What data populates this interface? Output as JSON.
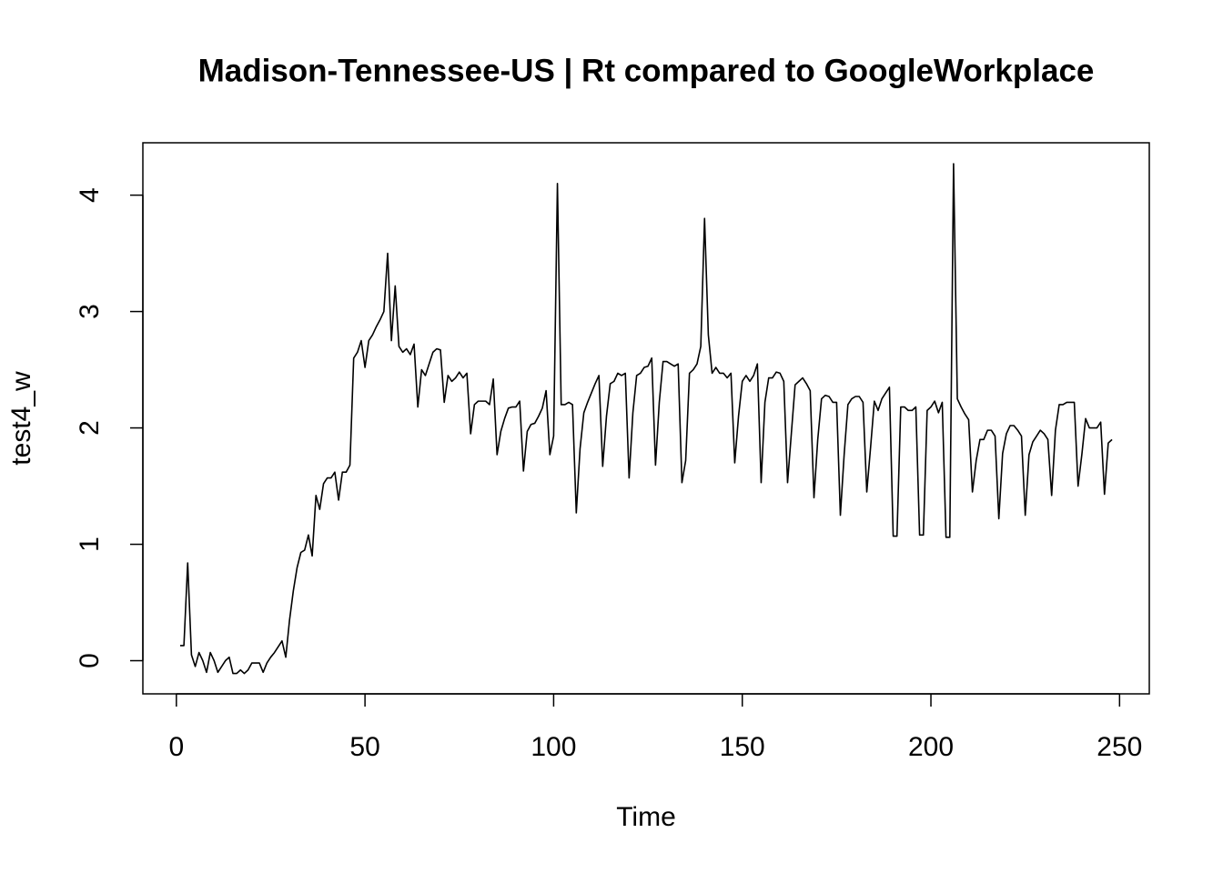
{
  "chart_data": {
    "type": "line",
    "title": "Madison-Tennessee-US | Rt compared to GoogleWorkplace",
    "x_label": "Time",
    "y_label": "test4_w",
    "xlim": [
      -8.88,
      257.88
    ],
    "ylim": [
      -0.285,
      4.45
    ],
    "xticks": [
      0,
      50,
      100,
      150,
      200,
      250
    ],
    "yticks": [
      0,
      1,
      2,
      3,
      4
    ],
    "series": [
      {
        "color": "#000000",
        "x": [
          1,
          2,
          3,
          4,
          5,
          6,
          7,
          8,
          9,
          10,
          11,
          12,
          13,
          14,
          15,
          16,
          17,
          18,
          19,
          20,
          21,
          22,
          23,
          24,
          25,
          26,
          27,
          28,
          29,
          30,
          31,
          32,
          33,
          34,
          35,
          36,
          37,
          38,
          39,
          40,
          41,
          42,
          43,
          44,
          45,
          46,
          47,
          48,
          49,
          50,
          51,
          52,
          53,
          54,
          55,
          56,
          57,
          58,
          59,
          60,
          61,
          62,
          63,
          64,
          65,
          66,
          67,
          68,
          69,
          70,
          71,
          72,
          73,
          74,
          75,
          76,
          77,
          78,
          79,
          80,
          81,
          82,
          83,
          84,
          85,
          86,
          87,
          88,
          89,
          90,
          91,
          92,
          93,
          94,
          95,
          96,
          97,
          98,
          99,
          100,
          101,
          102,
          103,
          104,
          105,
          106,
          107,
          108,
          109,
          110,
          111,
          112,
          113,
          114,
          115,
          116,
          117,
          118,
          119,
          120,
          121,
          122,
          123,
          124,
          125,
          126,
          127,
          128,
          129,
          130,
          131,
          132,
          133,
          134,
          135,
          136,
          137,
          138,
          139,
          140,
          141,
          142,
          143,
          144,
          145,
          146,
          147,
          148,
          149,
          150,
          151,
          152,
          153,
          154,
          155,
          156,
          157,
          158,
          159,
          160,
          161,
          162,
          163,
          164,
          165,
          166,
          167,
          168,
          169,
          170,
          171,
          172,
          173,
          174,
          175,
          176,
          177,
          178,
          179,
          180,
          181,
          182,
          183,
          184,
          185,
          186,
          187,
          188,
          189,
          190,
          191,
          192,
          193,
          194,
          195,
          196,
          197,
          198,
          199,
          200,
          201,
          202,
          203,
          204,
          205,
          206,
          207,
          208,
          209,
          210,
          211,
          212,
          213,
          214,
          215,
          216,
          217,
          218,
          219,
          220,
          221,
          222,
          223,
          224,
          225,
          226,
          227,
          228,
          229,
          230,
          231,
          232,
          233,
          234,
          235,
          236,
          237,
          238,
          239,
          240,
          241,
          242,
          243,
          244,
          245,
          246,
          247,
          248
        ],
        "values": [
          0.13,
          0.13,
          0.84,
          0.05,
          -0.05,
          0.07,
          0.0,
          -0.1,
          0.07,
          0.0,
          -0.1,
          -0.05,
          0.0,
          0.03,
          -0.11,
          -0.11,
          -0.08,
          -0.11,
          -0.08,
          -0.02,
          -0.02,
          -0.02,
          -0.1,
          -0.02,
          0.03,
          0.07,
          0.12,
          0.17,
          0.03,
          0.35,
          0.6,
          0.8,
          0.93,
          0.95,
          1.08,
          0.9,
          1.42,
          1.3,
          1.52,
          1.57,
          1.57,
          1.62,
          1.38,
          1.62,
          1.62,
          1.68,
          2.6,
          2.65,
          2.75,
          2.52,
          2.75,
          2.8,
          2.87,
          2.93,
          3.0,
          3.5,
          2.75,
          3.22,
          2.7,
          2.65,
          2.68,
          2.63,
          2.72,
          2.18,
          2.5,
          2.45,
          2.55,
          2.65,
          2.68,
          2.67,
          2.22,
          2.45,
          2.4,
          2.43,
          2.48,
          2.43,
          2.47,
          1.95,
          2.2,
          2.23,
          2.23,
          2.23,
          2.2,
          2.42,
          1.77,
          1.97,
          2.08,
          2.17,
          2.18,
          2.18,
          2.23,
          1.63,
          1.97,
          2.03,
          2.04,
          2.1,
          2.17,
          2.32,
          1.77,
          1.93,
          4.1,
          2.2,
          2.2,
          2.22,
          2.2,
          1.27,
          1.82,
          2.13,
          2.22,
          2.3,
          2.38,
          2.45,
          1.67,
          2.1,
          2.38,
          2.4,
          2.47,
          2.45,
          2.47,
          1.57,
          2.13,
          2.45,
          2.47,
          2.52,
          2.53,
          2.6,
          1.68,
          2.22,
          2.57,
          2.57,
          2.55,
          2.53,
          2.55,
          1.53,
          1.72,
          2.47,
          2.5,
          2.55,
          2.7,
          3.8,
          2.8,
          2.47,
          2.52,
          2.47,
          2.47,
          2.43,
          2.47,
          1.7,
          2.1,
          2.4,
          2.45,
          2.4,
          2.45,
          2.55,
          1.53,
          2.22,
          2.43,
          2.43,
          2.48,
          2.47,
          2.4,
          1.53,
          1.95,
          2.37,
          2.4,
          2.43,
          2.38,
          2.32,
          1.4,
          1.9,
          2.25,
          2.28,
          2.27,
          2.22,
          2.22,
          1.25,
          1.77,
          2.2,
          2.25,
          2.27,
          2.27,
          2.22,
          1.45,
          1.83,
          2.23,
          2.15,
          2.25,
          2.3,
          2.35,
          1.07,
          1.07,
          2.18,
          2.18,
          2.15,
          2.15,
          2.18,
          1.08,
          1.08,
          2.15,
          2.18,
          2.23,
          2.13,
          2.22,
          1.06,
          1.06,
          4.27,
          2.25,
          2.18,
          2.12,
          2.07,
          1.45,
          1.72,
          1.9,
          1.9,
          1.98,
          1.98,
          1.93,
          1.22,
          1.78,
          1.95,
          2.02,
          2.02,
          1.98,
          1.93,
          1.25,
          1.77,
          1.88,
          1.93,
          1.98,
          1.95,
          1.9,
          1.42,
          1.98,
          2.2,
          2.2,
          2.22,
          2.22,
          2.22,
          1.5,
          1.77,
          2.08,
          2.0,
          2.0,
          2.0,
          2.05,
          1.43,
          1.87,
          1.9
        ]
      }
    ]
  }
}
